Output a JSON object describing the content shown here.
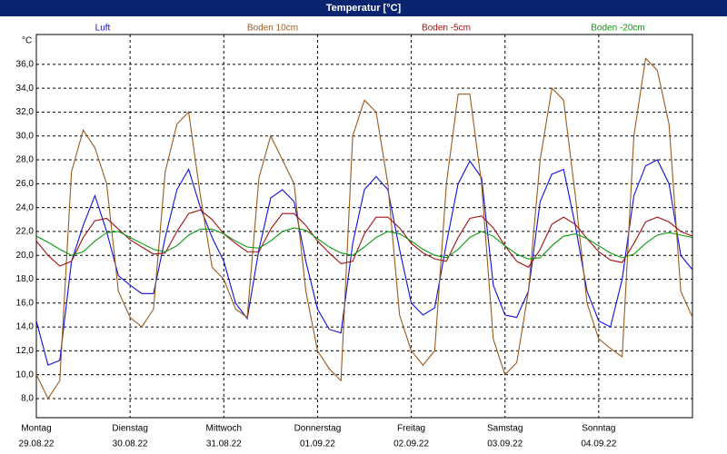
{
  "chart_data": {
    "type": "line",
    "title": "Temperatur [°C]",
    "y_label": "°C",
    "ylim": [
      6.4,
      38.5
    ],
    "yticks": [
      {
        "value": 8,
        "label": "8,0"
      },
      {
        "value": 10,
        "label": "10,0"
      },
      {
        "value": 12,
        "label": "12,0"
      },
      {
        "value": 14,
        "label": "14,0"
      },
      {
        "value": 16,
        "label": "16,0"
      },
      {
        "value": 18,
        "label": "18,0"
      },
      {
        "value": 20,
        "label": "20,0"
      },
      {
        "value": 22,
        "label": "22,0"
      },
      {
        "value": 24,
        "label": "24,0"
      },
      {
        "value": 26,
        "label": "26,0"
      },
      {
        "value": 28,
        "label": "28,0"
      },
      {
        "value": 30,
        "label": "30,0"
      },
      {
        "value": 32,
        "label": "32,0"
      },
      {
        "value": 34,
        "label": "34,0"
      },
      {
        "value": 36,
        "label": "36,0"
      }
    ],
    "xlim": [
      0,
      7
    ],
    "x_days": [
      {
        "value": 0,
        "weekday": "Montag",
        "date": "29.08.22"
      },
      {
        "value": 1,
        "weekday": "Dienstag",
        "date": "30.08.22"
      },
      {
        "value": 2,
        "weekday": "Mittwoch",
        "date": "31.08.22"
      },
      {
        "value": 3,
        "weekday": "Donnerstag",
        "date": "01.09.22"
      },
      {
        "value": 4,
        "weekday": "Freitag",
        "date": "02.09.22"
      },
      {
        "value": 5,
        "weekday": "Samstag",
        "date": "03.09.22"
      },
      {
        "value": 6,
        "weekday": "Sonntag",
        "date": "04.09.22"
      }
    ],
    "grid": true,
    "x": [
      0,
      0.125,
      0.25,
      0.375,
      0.5,
      0.625,
      0.75,
      0.875,
      1,
      1.125,
      1.25,
      1.375,
      1.5,
      1.625,
      1.75,
      1.875,
      2,
      2.125,
      2.25,
      2.375,
      2.5,
      2.625,
      2.75,
      2.875,
      3,
      3.125,
      3.25,
      3.375,
      3.5,
      3.625,
      3.75,
      3.875,
      4,
      4.125,
      4.25,
      4.375,
      4.5,
      4.625,
      4.75,
      4.875,
      5,
      5.125,
      5.25,
      5.375,
      5.5,
      5.625,
      5.75,
      5.875,
      6,
      6.125,
      6.25,
      6.375,
      6.5,
      6.625,
      6.75,
      6.875,
      7
    ],
    "series": [
      {
        "name": "Luft",
        "color": "#1010d8",
        "values": [
          14.5,
          10.8,
          11.2,
          19.5,
          22.5,
          25,
          22,
          18.3,
          17.5,
          16.8,
          16.8,
          21.5,
          25.5,
          27.2,
          24,
          21.5,
          19.5,
          16,
          14.7,
          20.5,
          24.8,
          25.5,
          24.5,
          19.5,
          15.5,
          13.8,
          13.5,
          21,
          25.5,
          26.6,
          25.5,
          20.5,
          16,
          15,
          15.6,
          21,
          26,
          27.9,
          26.5,
          17.5,
          15,
          14.8,
          17,
          24.5,
          26.8,
          27.2,
          22.5,
          17,
          14.5,
          14,
          18,
          25,
          27.5,
          28,
          26,
          20,
          18.8
        ]
      },
      {
        "name": "Boden 10cm",
        "color": "#9b5a1e",
        "values": [
          10,
          8,
          9.5,
          27,
          30.5,
          29,
          26,
          17,
          14.8,
          14,
          15.5,
          27,
          31,
          32,
          25,
          19,
          18,
          15.5,
          14.8,
          26.5,
          30,
          28,
          26,
          17,
          12,
          10.5,
          9.5,
          30,
          33,
          32,
          26,
          15,
          12,
          10.8,
          12,
          26,
          33.5,
          33.5,
          26,
          13,
          10,
          11,
          17,
          28,
          34,
          33,
          25,
          16,
          13,
          12.2,
          11.5,
          30,
          36.5,
          35.5,
          31,
          17,
          14.8
        ]
      },
      {
        "name": "Boden -5cm",
        "color": "#a01010",
        "values": [
          21.2,
          20,
          19.1,
          19.5,
          21.5,
          22.9,
          23.1,
          22.2,
          21.3,
          20.7,
          20.1,
          20.2,
          22,
          23.5,
          23.8,
          23,
          21.8,
          21,
          20.3,
          20.3,
          22.2,
          23.5,
          23.5,
          22.5,
          21.2,
          20.2,
          19.3,
          19.5,
          21.8,
          23.2,
          23.2,
          22.3,
          21,
          20.2,
          19.7,
          19.5,
          21.5,
          23.1,
          23.3,
          22.3,
          20.8,
          19.5,
          19,
          20.5,
          22.6,
          23.2,
          22.6,
          21.4,
          20.3,
          19.6,
          19.4,
          21,
          22.8,
          23.2,
          22.8,
          22,
          21.6
        ]
      },
      {
        "name": "Boden -20cm",
        "color": "#0a9a0a",
        "values": [
          21.6,
          21.1,
          20.5,
          20,
          20.3,
          21.2,
          21.9,
          22,
          21.5,
          21,
          20.5,
          20.3,
          20.8,
          21.7,
          22.2,
          22.2,
          21.8,
          21.2,
          20.7,
          20.6,
          21.2,
          22,
          22.3,
          22.1,
          21.4,
          20.7,
          20.2,
          20,
          20.7,
          21.5,
          22,
          21.8,
          21.2,
          20.5,
          20,
          19.8,
          20.5,
          21.5,
          22,
          21.6,
          20.8,
          20.1,
          19.7,
          19.8,
          20.8,
          21.6,
          21.8,
          21.4,
          20.8,
          20.2,
          19.8,
          20.1,
          21,
          21.7,
          21.9,
          21.7,
          21.5
        ]
      }
    ]
  }
}
